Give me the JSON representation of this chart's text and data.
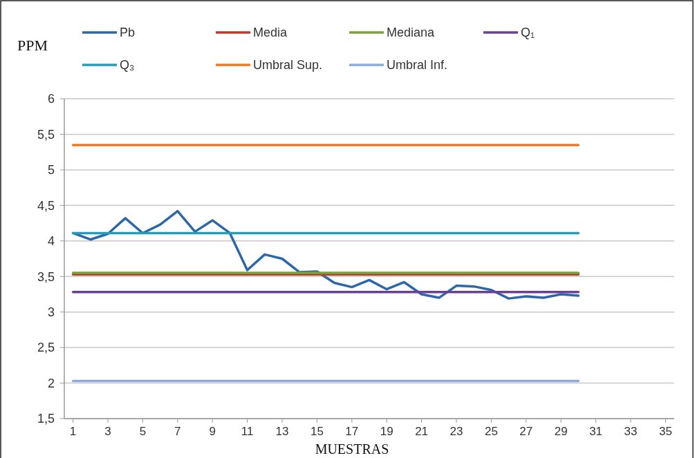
{
  "chart_data": {
    "type": "line",
    "ylabel": "PPM",
    "xlabel": "MUESTRAS",
    "x": [
      1,
      2,
      3,
      4,
      5,
      6,
      7,
      8,
      9,
      10,
      11,
      12,
      13,
      14,
      15,
      16,
      17,
      18,
      19,
      20,
      21,
      22,
      23,
      24,
      25,
      26,
      27,
      28,
      29,
      30
    ],
    "xlim": [
      0.5,
      35.5
    ],
    "xticks": [
      1,
      3,
      5,
      7,
      9,
      11,
      13,
      15,
      17,
      19,
      21,
      23,
      25,
      27,
      29,
      31,
      33,
      35
    ],
    "series": [
      {
        "name": "Pb",
        "color": "#2e67a8",
        "values": [
          4.11,
          4.02,
          4.1,
          4.32,
          4.11,
          4.23,
          4.42,
          4.13,
          4.29,
          4.11,
          3.59,
          3.81,
          3.75,
          3.56,
          3.57,
          3.41,
          3.35,
          3.45,
          3.32,
          3.42,
          3.25,
          3.2,
          3.37,
          3.36,
          3.31,
          3.19,
          3.22,
          3.2,
          3.25,
          3.23
        ]
      },
      {
        "name": "Media",
        "color": "#c0392b",
        "values": [
          3.53,
          3.53,
          3.53,
          3.53,
          3.53,
          3.53,
          3.53,
          3.53,
          3.53,
          3.53,
          3.53,
          3.53,
          3.53,
          3.53,
          3.53,
          3.53,
          3.53,
          3.53,
          3.53,
          3.53,
          3.53,
          3.53,
          3.53,
          3.53,
          3.53,
          3.53,
          3.53,
          3.53,
          3.53,
          3.53
        ]
      },
      {
        "name": "Mediana",
        "color": "#77a43a",
        "values": [
          3.55,
          3.55,
          3.55,
          3.55,
          3.55,
          3.55,
          3.55,
          3.55,
          3.55,
          3.55,
          3.55,
          3.55,
          3.55,
          3.55,
          3.55,
          3.55,
          3.55,
          3.55,
          3.55,
          3.55,
          3.55,
          3.55,
          3.55,
          3.55,
          3.55,
          3.55,
          3.55,
          3.55,
          3.55,
          3.55
        ]
      },
      {
        "name": "Q₁",
        "color": "#6b3f96",
        "values": [
          3.28,
          3.28,
          3.28,
          3.28,
          3.28,
          3.28,
          3.28,
          3.28,
          3.28,
          3.28,
          3.28,
          3.28,
          3.28,
          3.28,
          3.28,
          3.28,
          3.28,
          3.28,
          3.28,
          3.28,
          3.28,
          3.28,
          3.28,
          3.28,
          3.28,
          3.28,
          3.28,
          3.28,
          3.28,
          3.28
        ]
      },
      {
        "name": "Q₃",
        "color": "#2a9bb5",
        "values": [
          4.11,
          4.11,
          4.11,
          4.11,
          4.11,
          4.11,
          4.11,
          4.11,
          4.11,
          4.11,
          4.11,
          4.11,
          4.11,
          4.11,
          4.11,
          4.11,
          4.11,
          4.11,
          4.11,
          4.11,
          4.11,
          4.11,
          4.11,
          4.11,
          4.11,
          4.11,
          4.11,
          4.11,
          4.11,
          4.11
        ]
      },
      {
        "name": "Umbral Sup.",
        "color": "#e97b27",
        "values": [
          5.35,
          5.35,
          5.35,
          5.35,
          5.35,
          5.35,
          5.35,
          5.35,
          5.35,
          5.35,
          5.35,
          5.35,
          5.35,
          5.35,
          5.35,
          5.35,
          5.35,
          5.35,
          5.35,
          5.35,
          5.35,
          5.35,
          5.35,
          5.35,
          5.35,
          5.35,
          5.35,
          5.35,
          5.35,
          5.35
        ]
      },
      {
        "name": "Umbral Inf.",
        "color": "#8eaadb",
        "values": [
          2.03,
          2.03,
          2.03,
          2.03,
          2.03,
          2.03,
          2.03,
          2.03,
          2.03,
          2.03,
          2.03,
          2.03,
          2.03,
          2.03,
          2.03,
          2.03,
          2.03,
          2.03,
          2.03,
          2.03,
          2.03,
          2.03,
          2.03,
          2.03,
          2.03,
          2.03,
          2.03,
          2.03,
          2.03,
          2.03
        ]
      }
    ],
    "ylim": [
      1.5,
      6
    ],
    "yticks": [
      {
        "value": 1.5,
        "label": "1,5"
      },
      {
        "value": 2,
        "label": "2"
      },
      {
        "value": 2.5,
        "label": "2,5"
      },
      {
        "value": 3,
        "label": "3"
      },
      {
        "value": 3.5,
        "label": "3,5"
      },
      {
        "value": 4,
        "label": "4"
      },
      {
        "value": 4.5,
        "label": "4,5"
      },
      {
        "value": 5,
        "label": "5"
      },
      {
        "value": 5.5,
        "label": "5,5"
      },
      {
        "value": 6,
        "label": "6"
      }
    ],
    "grid": "y",
    "legend": "top",
    "marker": "none",
    "line_style": "solid"
  }
}
